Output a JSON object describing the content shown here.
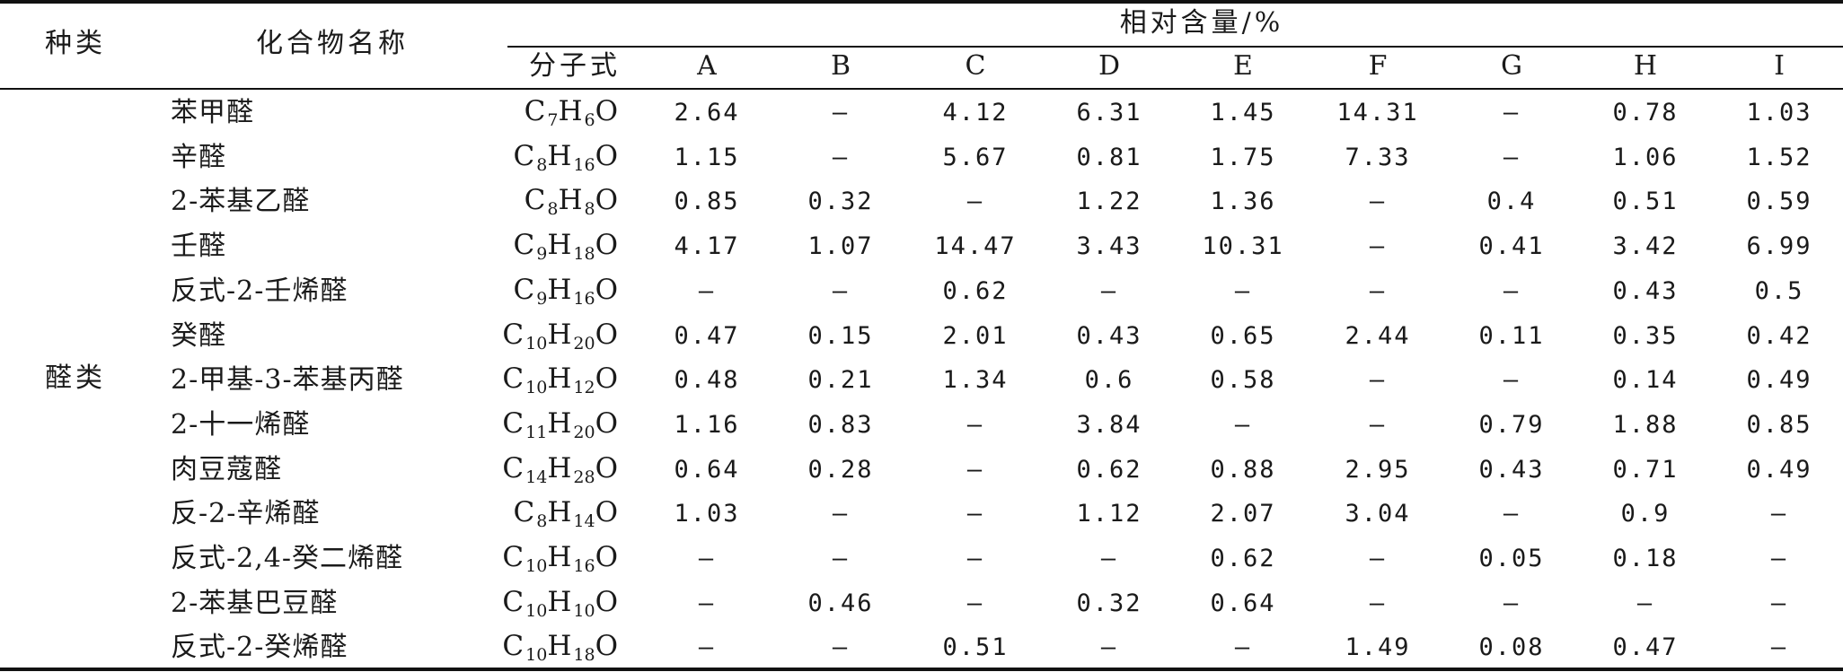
{
  "table": {
    "header": {
      "category": "种类",
      "compound_name": "化合物名称",
      "relative_content": "相对含量/%",
      "formula": "分子式",
      "samples": [
        "A",
        "B",
        "C",
        "D",
        "E",
        "F",
        "G",
        "H",
        "I"
      ]
    },
    "category_label": "醛类",
    "rows": [
      {
        "name": "苯甲醛",
        "formula": [
          [
            "C",
            "7"
          ],
          [
            "H",
            "6"
          ],
          [
            "O",
            ""
          ]
        ],
        "values": [
          "2.64",
          "—",
          "4.12",
          "6.31",
          "1.45",
          "14.31",
          "—",
          "0.78",
          "1.03"
        ]
      },
      {
        "name": "辛醛",
        "formula": [
          [
            "C",
            "8"
          ],
          [
            "H",
            "16"
          ],
          [
            "O",
            ""
          ]
        ],
        "values": [
          "1.15",
          "—",
          "5.67",
          "0.81",
          "1.75",
          "7.33",
          "—",
          "1.06",
          "1.52"
        ]
      },
      {
        "name": "2-苯基乙醛",
        "formula": [
          [
            "C",
            "8"
          ],
          [
            "H",
            "8"
          ],
          [
            "O",
            ""
          ]
        ],
        "values": [
          "0.85",
          "0.32",
          "—",
          "1.22",
          "1.36",
          "—",
          "0.4",
          "0.51",
          "0.59"
        ]
      },
      {
        "name": "壬醛",
        "formula": [
          [
            "C",
            "9"
          ],
          [
            "H",
            "18"
          ],
          [
            "O",
            ""
          ]
        ],
        "values": [
          "4.17",
          "1.07",
          "14.47",
          "3.43",
          "10.31",
          "—",
          "0.41",
          "3.42",
          "6.99"
        ]
      },
      {
        "name": "反式-2-壬烯醛",
        "formula": [
          [
            "C",
            "9"
          ],
          [
            "H",
            "16"
          ],
          [
            "O",
            ""
          ]
        ],
        "values": [
          "—",
          "—",
          "0.62",
          "—",
          "—",
          "—",
          "—",
          "0.43",
          "0.5"
        ]
      },
      {
        "name": "癸醛",
        "formula": [
          [
            "C",
            "10"
          ],
          [
            "H",
            "20"
          ],
          [
            "O",
            ""
          ]
        ],
        "values": [
          "0.47",
          "0.15",
          "2.01",
          "0.43",
          "0.65",
          "2.44",
          "0.11",
          "0.35",
          "0.42"
        ]
      },
      {
        "name": "2-甲基-3-苯基丙醛",
        "formula": [
          [
            "C",
            "10"
          ],
          [
            "H",
            "12"
          ],
          [
            "O",
            ""
          ]
        ],
        "values": [
          "0.48",
          "0.21",
          "1.34",
          "0.6",
          "0.58",
          "—",
          "—",
          "0.14",
          "0.49"
        ]
      },
      {
        "name": "2-十一烯醛",
        "formula": [
          [
            "C",
            "11"
          ],
          [
            "H",
            "20"
          ],
          [
            "O",
            ""
          ]
        ],
        "values": [
          "1.16",
          "0.83",
          "—",
          "3.84",
          "—",
          "—",
          "0.79",
          "1.88",
          "0.85"
        ]
      },
      {
        "name": "肉豆蔻醛",
        "formula": [
          [
            "C",
            "14"
          ],
          [
            "H",
            "28"
          ],
          [
            "O",
            ""
          ]
        ],
        "values": [
          "0.64",
          "0.28",
          "—",
          "0.62",
          "0.88",
          "2.95",
          "0.43",
          "0.71",
          "0.49"
        ]
      },
      {
        "name": "反-2-辛烯醛",
        "formula": [
          [
            "C",
            "8"
          ],
          [
            "H",
            "14"
          ],
          [
            "O",
            ""
          ]
        ],
        "values": [
          "1.03",
          "—",
          "—",
          "1.12",
          "2.07",
          "3.04",
          "—",
          "0.9",
          "—"
        ]
      },
      {
        "name": "反式-2,4-癸二烯醛",
        "formula": [
          [
            "C",
            "10"
          ],
          [
            "H",
            "16"
          ],
          [
            "O",
            ""
          ]
        ],
        "values": [
          "—",
          "—",
          "—",
          "—",
          "0.62",
          "—",
          "0.05",
          "0.18",
          "—"
        ]
      },
      {
        "name": "2-苯基巴豆醛",
        "formula": [
          [
            "C",
            "10"
          ],
          [
            "H",
            "10"
          ],
          [
            "O",
            ""
          ]
        ],
        "values": [
          "—",
          "0.46",
          "—",
          "0.32",
          "0.64",
          "—",
          "—",
          "—",
          "—"
        ]
      },
      {
        "name": "反式-2-癸烯醛",
        "formula": [
          [
            "C",
            "10"
          ],
          [
            "H",
            "18"
          ],
          [
            "O",
            ""
          ]
        ],
        "values": [
          "—",
          "—",
          "0.51",
          "—",
          "—",
          "1.49",
          "0.08",
          "0.47",
          "—"
        ]
      }
    ]
  }
}
